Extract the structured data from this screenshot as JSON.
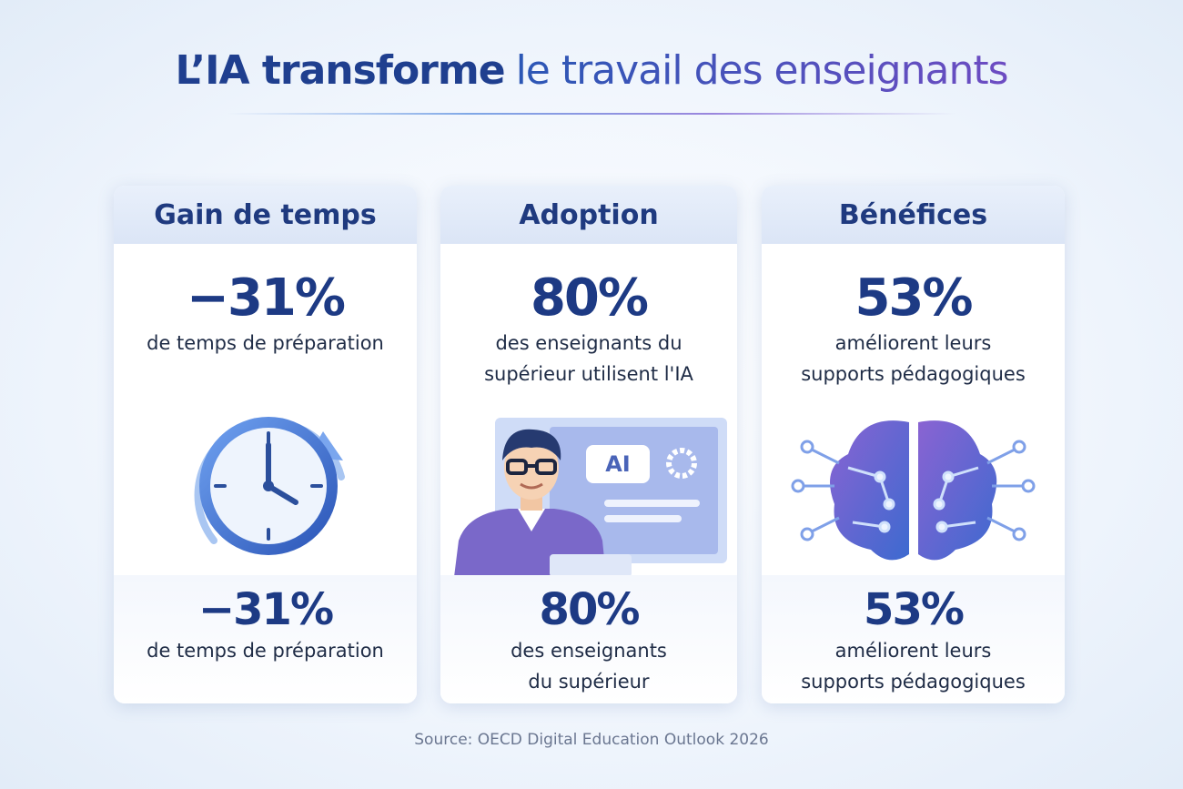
{
  "title": {
    "bold": "L’IA transforme",
    "rest": "le travail des enseignants"
  },
  "cards": [
    {
      "header": "Gain de temps",
      "stat": "−31%",
      "desc": [
        "de temps de préparation"
      ],
      "bottom_stat": "−31%",
      "bottom_desc": [
        "de temps de préparation"
      ]
    },
    {
      "header": "Adoption",
      "stat": "80%",
      "desc": [
        "des enseignants du",
        "supérieur utilisent l'IA"
      ],
      "bottom_stat": "80%",
      "bottom_desc": [
        "des enseignants",
        "du supérieur"
      ],
      "screen_label": "AI"
    },
    {
      "header": "Bénéfices",
      "stat": "53%",
      "desc": [
        "améliorent leurs",
        "supports pédagogiques"
      ],
      "bottom_stat": "53%",
      "bottom_desc": [
        "améliorent leurs",
        "supports pédagogiques"
      ]
    }
  ],
  "source": "Source: OECD Digital Education Outlook 2026"
}
